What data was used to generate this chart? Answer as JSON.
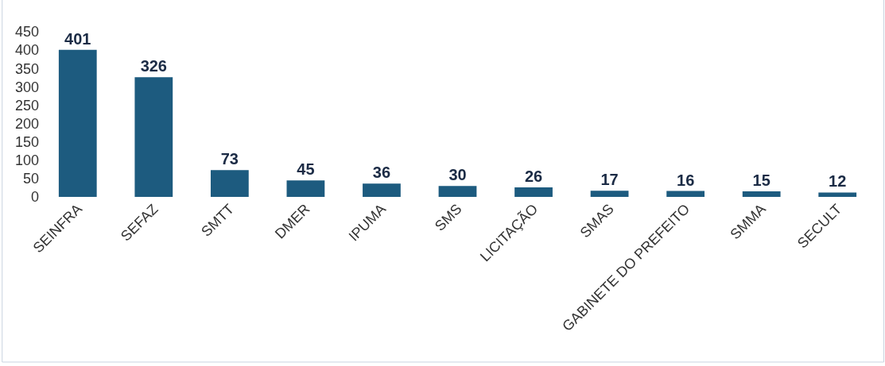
{
  "chart_data": {
    "type": "bar",
    "categories": [
      "SEINFRA",
      "SEFAZ",
      "SMTT",
      "DMER",
      "IPUMA",
      "SMS",
      "LICITAÇÃO",
      "SMAS",
      "GABINETE DO PREFEITO",
      "SMMA",
      "SECULT"
    ],
    "values": [
      401,
      326,
      73,
      45,
      36,
      30,
      26,
      17,
      16,
      15,
      12
    ],
    "color": "#1d5b7f",
    "ylim": [
      0,
      450
    ],
    "yticks": [
      0,
      50,
      100,
      150,
      200,
      250,
      300,
      350,
      400,
      450
    ],
    "data_labels": true
  }
}
